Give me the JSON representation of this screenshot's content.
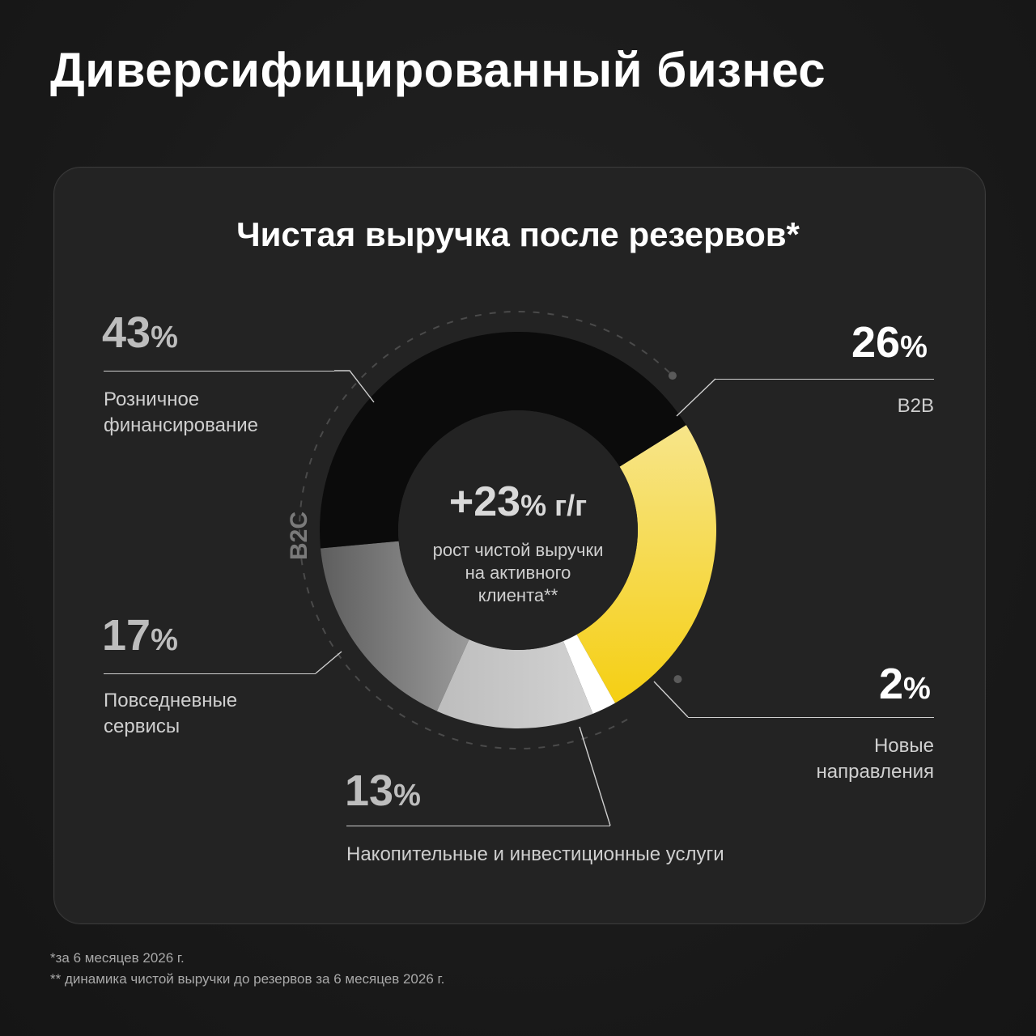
{
  "title": "Диверсифицированный бизнес",
  "chart_title": "Чистая выручка после резервов*",
  "center": {
    "value": "+23",
    "unit": "% г/г",
    "caption_lines": [
      "рост чистой выручки",
      "на активного",
      "клиента**"
    ]
  },
  "group_label": "B2C",
  "chart_data": {
    "type": "pie",
    "title": "Чистая выручка после резервов*",
    "unit": "%",
    "slices": [
      {
        "label": "B2B",
        "value": 26,
        "color": "#f5d21f"
      },
      {
        "label": "Новые направления",
        "value": 2,
        "color": "#ffffff"
      },
      {
        "label": "Накопительные и инвестиционные услуги",
        "value": 13,
        "color": "#c4c4c4"
      },
      {
        "label": "Повседневные сервисы",
        "value": 17,
        "color": "#8a8a8a"
      },
      {
        "label": "Розничное финансирование",
        "value": 43,
        "color": "#0b0b0b"
      }
    ]
  },
  "labels": {
    "retail": {
      "value": "43",
      "sign": "%",
      "lines": [
        "Розничное",
        "финансирование"
      ]
    },
    "b2b": {
      "value": "26",
      "sign": "%",
      "lines": [
        "B2B"
      ]
    },
    "daily": {
      "value": "17",
      "sign": "%",
      "lines": [
        "Повседневные",
        "сервисы"
      ]
    },
    "savings": {
      "value": "13",
      "sign": "%",
      "lines": [
        "Накопительные и инвестиционные услуги"
      ]
    },
    "new": {
      "value": "2",
      "sign": "%",
      "lines": [
        "Новые",
        "направления"
      ]
    }
  },
  "footnotes": [
    "*за 6 месяцев 2026 г.",
    "** динамика чистой выручки до резервов за 6 месяцев 2026 г."
  ],
  "colors": {
    "background": "#1a1a1a",
    "card": "#232323",
    "accent": "#f5d21f"
  }
}
